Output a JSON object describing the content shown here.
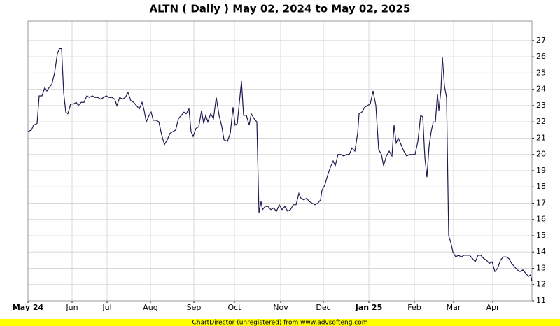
{
  "chart_data": {
    "type": "line",
    "title": "ALTN ( Daily ) May 02, 2024 to May 02, 2025",
    "footer": "ChartDirector (unregistered) from www.advsofteng.com",
    "color": "#1c1c50",
    "grid": true,
    "xlim": [
      0,
      360
    ],
    "xticks": [
      {
        "value": 0,
        "label": "May 24"
      },
      {
        "value": 31.5,
        "label": "Jun"
      },
      {
        "value": 56.5,
        "label": "Jul"
      },
      {
        "value": 87.5,
        "label": "Aug"
      },
      {
        "value": 118.5,
        "label": "Sep"
      },
      {
        "value": 147.5,
        "label": "Oct"
      },
      {
        "value": 180.5,
        "label": "Nov"
      },
      {
        "value": 211,
        "label": "Dec"
      },
      {
        "value": 243.5,
        "label": "Jan 25"
      },
      {
        "value": 276,
        "label": "Feb"
      },
      {
        "value": 304,
        "label": "Mar"
      },
      {
        "value": 332,
        "label": "Apr"
      }
    ],
    "ylim": [
      11,
      28.2
    ],
    "yticks": [
      11,
      12,
      13,
      14,
      15,
      16,
      17,
      18,
      19,
      20,
      21,
      22,
      23,
      24,
      25,
      26,
      27
    ],
    "x": [
      0,
      2.5,
      4,
      6.5,
      8,
      10,
      12,
      13.5,
      15,
      17,
      19,
      21,
      22.5,
      24,
      25.5,
      27,
      28.5,
      30.5,
      32.5,
      34.5,
      36,
      38,
      40,
      42,
      44,
      46,
      48,
      50,
      52,
      54,
      56,
      58,
      60,
      62,
      63.5,
      65.5,
      67.5,
      69.5,
      71.5,
      73.5,
      75.5,
      77.5,
      79.5,
      81.5,
      83,
      84.5,
      86.5,
      88,
      89.5,
      91.5,
      93.5,
      95.5,
      97.5,
      99.5,
      101.5,
      103.5,
      105.5,
      107.5,
      109.5,
      111.5,
      113,
      115,
      116.5,
      118,
      120,
      122,
      124,
      125.5,
      127,
      128.5,
      130.5,
      132.5,
      134.5,
      136.5,
      138.5,
      140,
      142.5,
      144.5,
      146.5,
      148,
      149.5,
      151,
      152.5,
      154,
      156,
      158,
      159.5,
      161.5,
      163.5,
      165,
      166.5,
      167.5,
      169.5,
      171.5,
      173.5,
      175.5,
      177.5,
      179.5,
      181.5,
      183.5,
      185.5,
      187.5,
      189.5,
      191.5,
      193.5,
      195,
      197,
      199,
      201,
      203,
      205,
      207,
      209,
      210,
      212,
      214,
      216,
      218,
      219.5,
      221.5,
      223.5,
      225.5,
      227.5,
      229.5,
      231.5,
      233.5,
      235.5,
      236.5,
      238.5,
      240.5,
      242.5,
      244.5,
      246.5,
      248.5,
      250.5,
      252.5,
      254,
      256,
      258,
      260,
      261.5,
      263,
      264.5,
      266.5,
      268.5,
      270.5,
      272.5,
      274.5,
      276.5,
      278.5,
      280.5,
      282,
      283.5,
      285,
      286.5,
      288,
      289.5,
      291,
      292.5,
      293.5,
      295,
      296,
      297.5,
      299,
      300.5,
      302,
      303.5,
      305.5,
      307.5,
      309.5,
      311.5,
      313.5,
      315.5,
      317.5,
      319.5,
      321.5,
      323.5,
      325.5,
      327.5,
      329.5,
      331.5,
      333.5,
      335.5,
      337.5,
      339.5,
      341.5,
      343.5,
      345.5,
      347.5,
      349.5,
      351.5,
      353.5,
      355.5,
      357.5,
      359,
      360
    ],
    "values": [
      21.4,
      21.5,
      21.8,
      21.9,
      23.6,
      23.6,
      24.1,
      23.9,
      24.1,
      24.3,
      25.0,
      26.2,
      26.5,
      26.5,
      23.8,
      22.6,
      22.5,
      23.1,
      23.1,
      23.2,
      23.0,
      23.2,
      23.2,
      23.6,
      23.5,
      23.6,
      23.5,
      23.5,
      23.4,
      23.5,
      23.6,
      23.5,
      23.5,
      23.4,
      23.0,
      23.5,
      23.4,
      23.5,
      23.8,
      23.3,
      23.2,
      23.0,
      22.8,
      23.2,
      22.7,
      22.0,
      22.4,
      22.6,
      22.1,
      22.1,
      22.0,
      21.2,
      20.6,
      20.9,
      21.3,
      21.4,
      21.5,
      22.2,
      22.4,
      22.6,
      22.5,
      22.8,
      21.4,
      21.1,
      21.6,
      21.7,
      22.7,
      21.9,
      22.4,
      22.0,
      22.5,
      22.2,
      23.5,
      22.4,
      21.7,
      20.9,
      20.8,
      21.3,
      22.9,
      21.8,
      21.9,
      23.2,
      24.5,
      22.4,
      22.4,
      21.8,
      22.5,
      22.2,
      22.0,
      16.4,
      17.1,
      16.6,
      16.8,
      16.8,
      16.6,
      16.7,
      16.5,
      16.9,
      16.6,
      16.8,
      16.5,
      16.6,
      16.9,
      16.9,
      17.6,
      17.3,
      17.2,
      17.3,
      17.1,
      17.0,
      16.9,
      17.0,
      17.2,
      17.8,
      18.1,
      18.7,
      19.2,
      19.6,
      19.3,
      20.0,
      20.0,
      19.9,
      20.0,
      20.0,
      20.4,
      20.2,
      21.3,
      22.5,
      22.6,
      22.9,
      23.0,
      23.1,
      23.9,
      23.0,
      20.3,
      20.0,
      19.3,
      19.9,
      20.2,
      19.9,
      21.8,
      20.7,
      21.0,
      20.6,
      20.2,
      19.9,
      20.0,
      20.0,
      20.0,
      20.8,
      22.4,
      22.3,
      19.8,
      18.6,
      20.5,
      21.4,
      22.0,
      22.0,
      23.7,
      22.7,
      24.0,
      26.0,
      24.2,
      23.5,
      15.0,
      14.6,
      14.0,
      13.7,
      13.8,
      13.7,
      13.8,
      13.8,
      13.8,
      13.6,
      13.4,
      13.8,
      13.8,
      13.6,
      13.5,
      13.3,
      13.4,
      12.8,
      13.0,
      13.5,
      13.7,
      13.7,
      13.6,
      13.3,
      13.1,
      12.9,
      12.8,
      12.9,
      12.7,
      12.5,
      12.6,
      12.2
    ]
  }
}
